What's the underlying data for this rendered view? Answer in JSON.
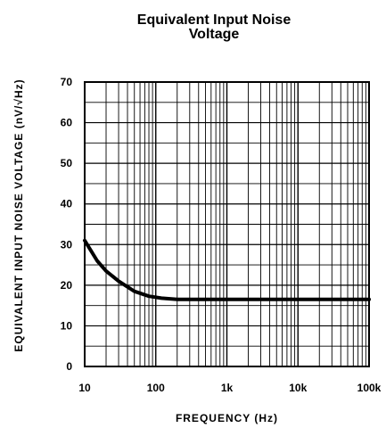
{
  "chart_data": {
    "type": "line",
    "title_line_1": "Equivalent Input Noise",
    "title_line_2": "Voltage",
    "title": "Equivalent Input Noise Voltage",
    "xlabel": "FREQUENCY (Hz)",
    "ylabel": "EQUIVALENT INPUT NOISE VOLTAGE (nV/√Hz)",
    "x_scale": "log",
    "xlim": [
      10,
      100000
    ],
    "ylim": [
      0,
      70
    ],
    "x_ticks": [
      10,
      100,
      1000,
      10000,
      100000
    ],
    "x_tick_labels": [
      "10",
      "100",
      "1k",
      "10k",
      "100k"
    ],
    "y_ticks": [
      0,
      10,
      20,
      30,
      40,
      50,
      60,
      70
    ],
    "y_tick_labels": [
      "0",
      "10",
      "20",
      "30",
      "40",
      "50",
      "60",
      "70"
    ],
    "grid": true,
    "series": [
      {
        "x": [
          10,
          15,
          20,
          30,
          50,
          80,
          120,
          200,
          500,
          1000,
          10000,
          100000
        ],
        "y": [
          31,
          26,
          23.5,
          21,
          18.5,
          17.3,
          16.8,
          16.5,
          16.5,
          16.5,
          16.5,
          16.5
        ]
      }
    ]
  }
}
